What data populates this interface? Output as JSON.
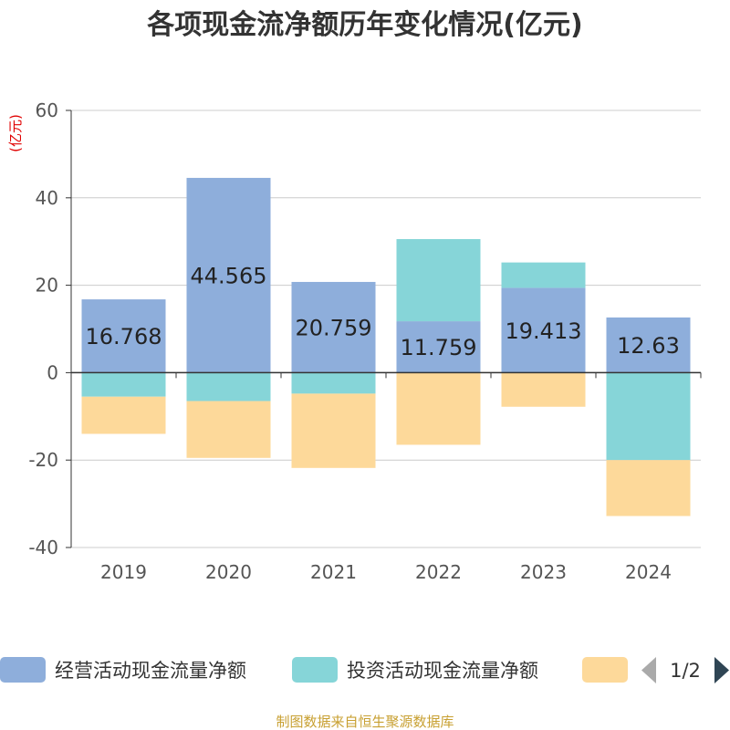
{
  "chart_data": {
    "type": "bar",
    "stacked": true,
    "title": "各项现金流净额历年变化情况(亿元)",
    "ylabel": "(亿元)",
    "xlabel": "",
    "ylim": [
      -40,
      60
    ],
    "yticks": [
      -40,
      -20,
      0,
      20,
      40,
      60
    ],
    "grid": true,
    "categories": [
      "2019",
      "2020",
      "2021",
      "2022",
      "2023",
      "2024"
    ],
    "series": [
      {
        "name": "经营活动现金流量净额",
        "color": "#8eaedb",
        "values": [
          16.768,
          44.565,
          20.759,
          11.759,
          19.413,
          12.63
        ],
        "labels": [
          "16.768",
          "44.565",
          "20.759",
          "11.759",
          "19.413",
          "12.63"
        ]
      },
      {
        "name": "投资活动现金流量净额",
        "color": "#86d5d8",
        "values": [
          -5.5,
          -6.5,
          -4.8,
          18.8,
          5.8,
          -20.0
        ]
      },
      {
        "name": "",
        "color": "#fdd99a",
        "values": [
          -8.5,
          -13.0,
          -17.0,
          -16.5,
          -7.8,
          -12.8
        ]
      }
    ],
    "legend_position": "bottom",
    "legend_page": "1/2"
  },
  "source": "制图数据来自恒生聚源数据库"
}
